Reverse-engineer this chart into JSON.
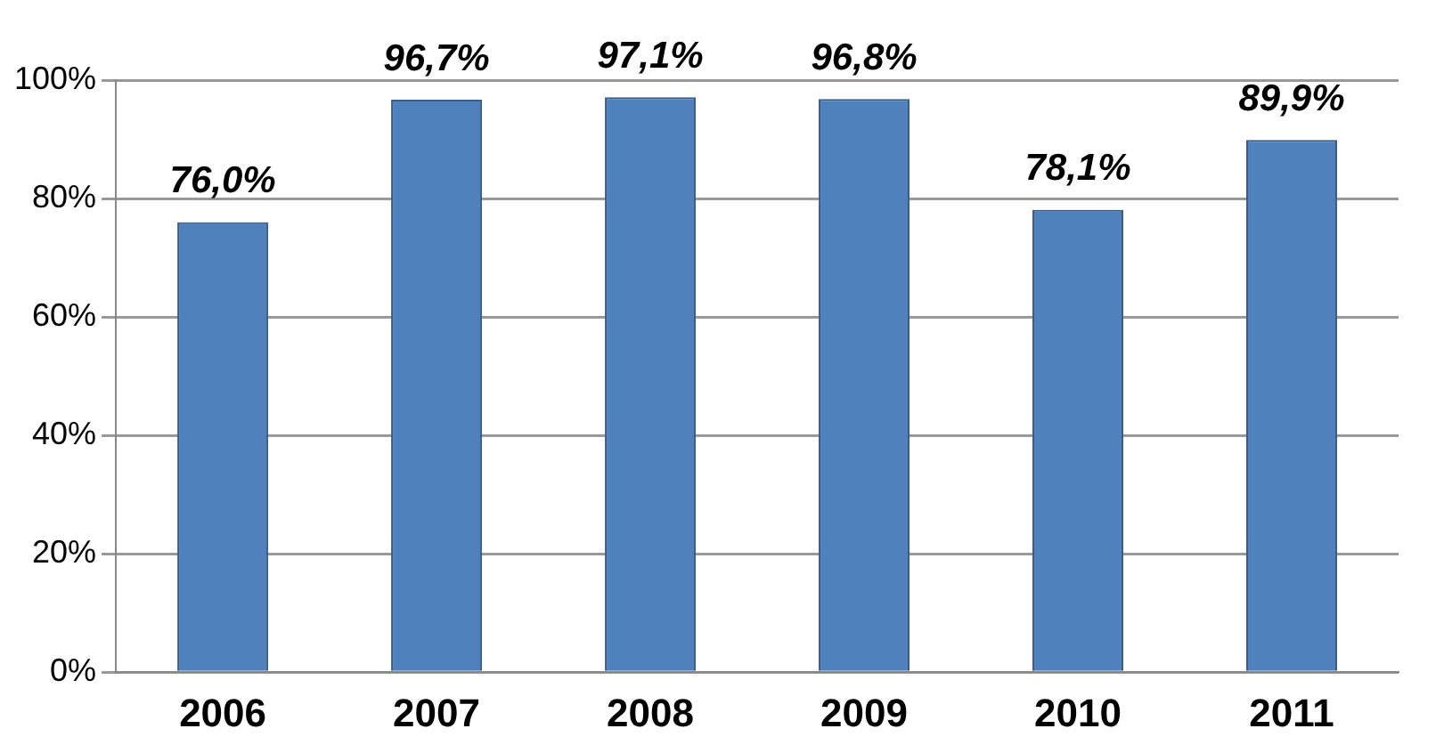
{
  "chart_data": {
    "type": "bar",
    "categories": [
      "2006",
      "2007",
      "2008",
      "2009",
      "2010",
      "2011"
    ],
    "values": [
      76.0,
      96.7,
      97.1,
      96.8,
      78.1,
      89.9
    ],
    "value_labels": [
      "76,0%",
      "96,7%",
      "97,1%",
      "96,8%",
      "78,1%",
      "89,9%"
    ],
    "color": "#4f81bd",
    "ylim": [
      0,
      100
    ],
    "yticks": [
      {
        "value": 0,
        "label": "0%"
      },
      {
        "value": 20,
        "label": "20%"
      },
      {
        "value": 40,
        "label": "40%"
      },
      {
        "value": 60,
        "label": "60%"
      },
      {
        "value": 80,
        "label": "80%"
      },
      {
        "value": 100,
        "label": "100%"
      }
    ],
    "grid": "y",
    "legend": false
  }
}
